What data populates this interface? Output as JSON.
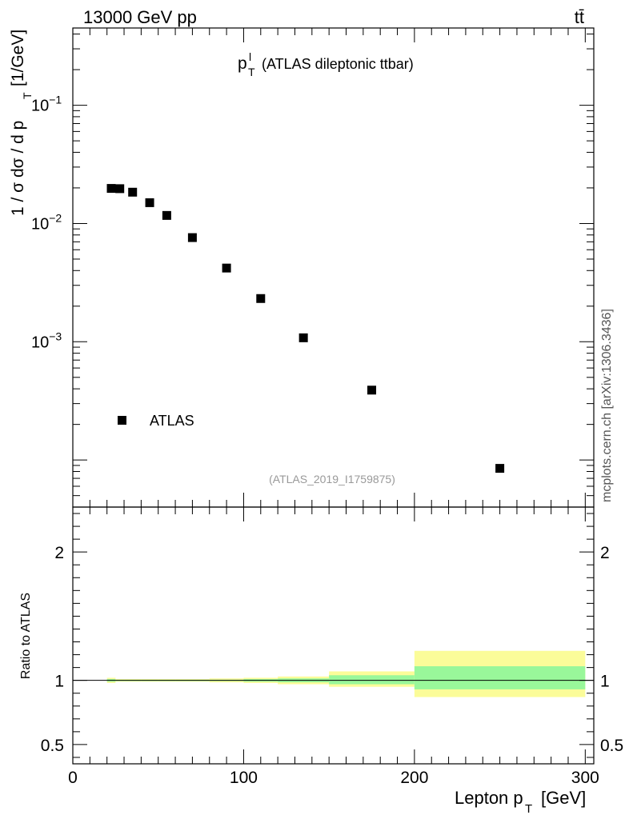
{
  "header": {
    "energy_label": "13000 GeV pp",
    "process_label": "tt̄"
  },
  "watermark": "mcplots.cern.ch [arXiv:1306.3436]",
  "chart_data": [
    {
      "type": "scatter",
      "panel": "main",
      "title": "(ATLAS dileptonic ttbar)",
      "title_symbol": "p",
      "title_sup": "l",
      "title_sub": "T",
      "ylabel_text": "1 / σ  dσ / d p",
      "ylabel_sub": "T",
      "ylabel_unit": "[1/GeV]",
      "yscale": "log",
      "ylim": [
        4e-05,
        0.45
      ],
      "xlim": [
        0,
        305
      ],
      "y_tick_labels": [
        {
          "value": 0.1,
          "base": "10",
          "exp": "−1"
        },
        {
          "value": 0.01,
          "base": "10",
          "exp": "−2"
        },
        {
          "value": 0.001,
          "base": "10",
          "exp": "−3"
        }
      ],
      "legend": {
        "placement": "lower-left",
        "entries": [
          "ATLAS"
        ]
      },
      "series": [
        {
          "name": "ATLAS",
          "marker": "square",
          "color": "#000000",
          "x": [
            22.5,
            27.5,
            35,
            45,
            55,
            70,
            90,
            110,
            135,
            175,
            250
          ],
          "y": [
            0.0198,
            0.0197,
            0.0184,
            0.015,
            0.0117,
            0.0076,
            0.0042,
            0.00232,
            0.00108,
            0.00039,
            8.5e-05
          ]
        }
      ],
      "analysis_id": "(ATLAS_2019_I1759875)"
    },
    {
      "type": "area",
      "panel": "ratio",
      "ylabel": "Ratio to ATLAS",
      "ylim": [
        0.35,
        2.35
      ],
      "xlim": [
        0,
        305
      ],
      "y_tick_labels": [
        "0.5",
        "1",
        "2"
      ],
      "x_tick_labels": [
        "0",
        "100",
        "200",
        "300"
      ],
      "xlabel_text": "Lepton p",
      "xlabel_sub": "T",
      "xlabel_unit": "[GeV]",
      "reference_line": 1,
      "bands": [
        {
          "x": [
            20,
            25
          ],
          "stat": [
            0.99,
            1.01
          ],
          "total": [
            0.98,
            1.02
          ]
        },
        {
          "x": [
            25,
            30
          ],
          "stat": [
            0.995,
            1.005
          ],
          "total": [
            0.99,
            1.01
          ]
        },
        {
          "x": [
            30,
            40
          ],
          "stat": [
            0.995,
            1.005
          ],
          "total": [
            0.99,
            1.01
          ]
        },
        {
          "x": [
            40,
            50
          ],
          "stat": [
            0.995,
            1.005
          ],
          "total": [
            0.99,
            1.01
          ]
        },
        {
          "x": [
            50,
            60
          ],
          "stat": [
            0.995,
            1.005
          ],
          "total": [
            0.99,
            1.01
          ]
        },
        {
          "x": [
            60,
            80
          ],
          "stat": [
            0.995,
            1.005
          ],
          "total": [
            0.99,
            1.01
          ]
        },
        {
          "x": [
            80,
            100
          ],
          "stat": [
            0.995,
            1.005
          ],
          "total": [
            0.985,
            1.015
          ]
        },
        {
          "x": [
            100,
            120
          ],
          "stat": [
            0.99,
            1.01
          ],
          "total": [
            0.98,
            1.02
          ]
        },
        {
          "x": [
            120,
            150
          ],
          "stat": [
            0.985,
            1.015
          ],
          "total": [
            0.97,
            1.03
          ]
        },
        {
          "x": [
            150,
            200
          ],
          "stat": [
            0.97,
            1.04
          ],
          "total": [
            0.95,
            1.07
          ]
        },
        {
          "x": [
            200,
            300
          ],
          "stat": [
            0.93,
            1.11
          ],
          "total": [
            0.87,
            1.23
          ]
        }
      ],
      "colors": {
        "stat": "#99f79a",
        "total": "#fbfc99",
        "line": "#000000"
      }
    }
  ]
}
